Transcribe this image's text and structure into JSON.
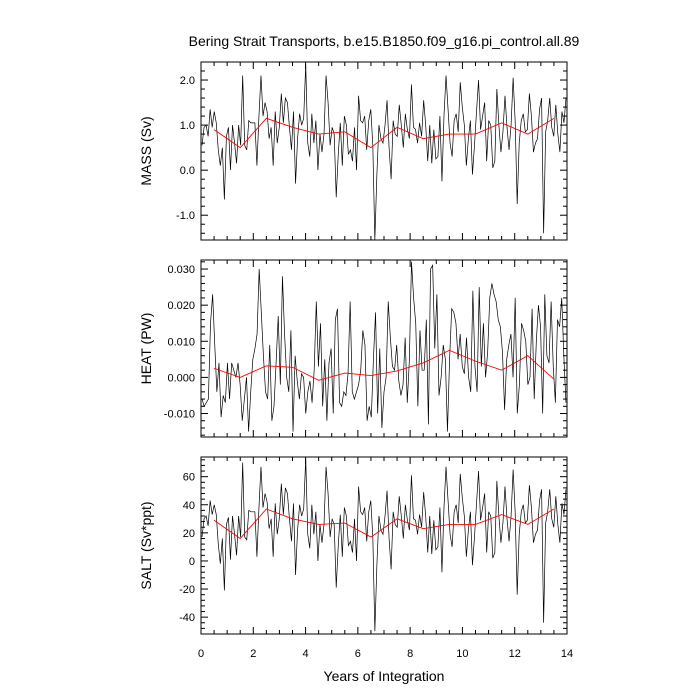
{
  "title": "Bering Strait Transports, b.e15.B1850.f09_g16.pi_control.all.89",
  "chart_data": {
    "type": "line",
    "title": "Bering Strait Transports, b.e15.B1850.f09_g16.pi_control.all.89",
    "xlabel": "Years of Integration",
    "xlim": [
      0,
      14
    ],
    "xticks": [
      "0",
      "2",
      "4",
      "6",
      "8",
      "10",
      "12",
      "14"
    ],
    "xtick_values": [
      0,
      2,
      4,
      6,
      8,
      10,
      12,
      14
    ],
    "colors": {
      "monthly": "#000000",
      "annual": "#ff0000"
    },
    "panels": [
      {
        "ylabel": "MASS (Sv)",
        "ylim": [
          -1.55,
          2.4
        ],
        "ytick_values": [
          -1.0,
          0.0,
          1.0,
          2.0
        ],
        "yticks": [
          "-1.0",
          "0.0",
          "1.0",
          "2.0"
        ],
        "series": [
          {
            "values": [
              0.55,
              0.95,
              1.0,
              0.75,
              1.35,
              0.95,
              1.3,
              1.05,
              0.45,
              0.1,
              0.5,
              -0.65,
              0.75,
              0.95,
              0.0,
              1.0,
              0.6,
              0.15,
              1.0,
              0.55,
              2.1,
              0.55,
              0.45,
              1.1,
              1.05,
              1.05,
              1.05,
              0.1,
              1.2,
              2.1,
              1.2,
              1.5,
              1.3,
              0.7,
              0.95,
              0.1,
              1.3,
              0.6,
              0.95,
              1.7,
              1.05,
              1.6,
              1.5,
              0.95,
              0.45,
              1.3,
              -0.3,
              0.7,
              1.25,
              1.0,
              1.15,
              2.35,
              0.6,
              0.3,
              1.25,
              0.6,
              1.1,
              0.0,
              0.8,
              0.4,
              0.8,
              2.1,
              1.5,
              0.55,
              0.95,
              0.8,
              -0.6,
              0.35,
              1.05,
              0.1,
              1.2,
              1.0,
              0.35,
              0.45,
              0.2,
              0.95,
              0.0,
              1.65,
              1.1,
              1.05,
              1.2,
              0.45,
              1.1,
              1.35,
              0.55,
              -1.55,
              -0.1,
              1.0,
              0.7,
              0.6,
              1.0,
              1.55,
              0.5,
              -0.2,
              1.1,
              0.8,
              0.75,
              1.45,
              1.0,
              0.5,
              1.25,
              0.9,
              0.7,
              1.9,
              0.95,
              0.9,
              0.6,
              1.05,
              0.75,
              1.55,
              1.0,
              0.2,
              1.0,
              0.15,
              0.9,
              0.25,
              0.3,
              1.2,
              -0.25,
              1.2,
              2.1,
              1.35,
              0.6,
              0.3,
              1.1,
              1.25,
              0.85,
              1.95,
              1.4,
              1.0,
              0.1,
              0.7,
              1.1,
              -0.1,
              0.55,
              1.3,
              2.0,
              0.9,
              1.2,
              1.5,
              0.2,
              1.1,
              1.0,
              0.05,
              0.2,
              1.8,
              1.0,
              0.4,
              0.85,
              1.65,
              0.95,
              0.45,
              1.0,
              2.05,
              1.1,
              -0.75,
              0.6,
              1.1,
              1.25,
              0.85,
              0.9,
              1.7,
              1.2,
              0.4,
              0.6,
              0.7,
              1.35,
              1.6,
              -1.4,
              0.85,
              1.1,
              1.6,
              0.95,
              0.75,
              1.45,
              0.8,
              0.4,
              1.3,
              1.05,
              1.6
            ]
          },
          {
            "x": [
              0.5,
              1.5,
              2.5,
              3.5,
              4.5,
              5.5,
              6.5,
              7.5,
              8.5,
              9.5,
              10.5,
              11.5,
              12.5,
              13.5
            ],
            "values": [
              0.9,
              0.5,
              1.15,
              0.95,
              0.8,
              0.85,
              0.5,
              0.95,
              0.7,
              0.8,
              0.8,
              1.05,
              0.8,
              1.15
            ]
          }
        ]
      },
      {
        "ylabel": "HEAT (PW)",
        "ylim": [
          -0.0165,
          0.0325
        ],
        "ytick_values": [
          -0.01,
          0.0,
          0.01,
          0.02,
          0.03
        ],
        "yticks": [
          "-0.010",
          "0.000",
          "0.010",
          "0.020",
          "0.030"
        ],
        "series": [
          {
            "values": [
              -0.006,
              -0.008,
              -0.007,
              -0.006,
              0.015,
              0.023,
              0.009,
              -0.004,
              0.004,
              -0.011,
              -0.005,
              -0.007,
              0.004,
              -0.006,
              0.004,
              0.002,
              0.0,
              0.004,
              -0.002,
              -0.012,
              -0.006,
              0.0,
              -0.015,
              -0.004,
              0.005,
              0.008,
              0.012,
              0.03,
              0.018,
              0.006,
              -0.004,
              -0.006,
              0.009,
              -0.012,
              -0.008,
              0.004,
              0.017,
              -0.002,
              0.028,
              0.012,
              0.0,
              -0.004,
              0.013,
              -0.015,
              0.006,
              -0.001,
              -0.006,
              0.001,
              0.0,
              -0.01,
              -0.004,
              -0.001,
              -0.007,
              0.002,
              0.021,
              0.003,
              0.015,
              -0.008,
              0.005,
              -0.012,
              0.004,
              0.008,
              -0.01,
              0.016,
              0.019,
              -0.007,
              -0.008,
              -0.004,
              -0.005,
              0.001,
              0.021,
              -0.004,
              -0.006,
              -0.004,
              -0.002,
              0.002,
              0.013,
              0.009,
              -0.012,
              -0.008,
              -0.011,
              0.005,
              0.018,
              -0.01,
              0.008,
              -0.014,
              -0.004,
              0.0,
              0.021,
              0.011,
              0.003,
              0.002,
              0.009,
              -0.001,
              -0.005,
              -0.002,
              0.011,
              -0.007,
              0.005,
              0.032,
              0.022,
              0.015,
              -0.008,
              0.013,
              0.002,
              0.002,
              0.016,
              -0.013,
              0.03,
              0.031,
              0.008,
              0.023,
              -0.005,
              0.0,
              0.009,
              0.005,
              -0.015,
              0.005,
              0.019,
              0.018,
              0.015,
              0.005,
              0.012,
              0.003,
              0.001,
              0.011,
              0.0,
              -0.004,
              0.024,
              0.003,
              -0.004,
              0.025,
              0.003,
              0.015,
              0.0,
              0.007,
              0.022,
              0.026,
              0.023,
              0.021,
              0.016,
              0.014,
              0.007,
              -0.009,
              0.005,
              0.009,
              0.012,
              0.0,
              0.022,
              -0.01,
              -0.002,
              0.015,
              0.013,
              0.01,
              -0.002,
              0.0,
              0.019,
              -0.006,
              0.01,
              0.02,
              0.014,
              -0.01,
              0.023,
              0.006,
              0.004,
              0.021,
              0.003,
              -0.007,
              0.016,
              0.014,
              0.022,
              0.006,
              -0.007
            ]
          },
          {
            "x": [
              0.5,
              1.5,
              2.5,
              3.5,
              4.5,
              5.5,
              6.5,
              7.5,
              8.5,
              9.5,
              10.5,
              11.5,
              12.5,
              13.5
            ],
            "values": [
              0.0025,
              0.0,
              0.0032,
              0.0028,
              -0.0008,
              0.0012,
              0.0005,
              0.0018,
              0.004,
              0.0075,
              0.0045,
              0.002,
              0.006,
              -0.0005
            ]
          }
        ]
      },
      {
        "ylabel": "SALT (Sv*ppt)",
        "ylim": [
          -52,
          74
        ],
        "ytick_values": [
          -40,
          -20,
          0,
          20,
          40,
          60
        ],
        "yticks": [
          "-40",
          "-20",
          "0",
          "20",
          "40",
          "60"
        ],
        "series": [
          {
            "values": [
              17,
              30,
              32,
              25,
              43,
              33,
              40,
              33,
              12,
              -2,
              16,
              -21,
              26,
              31,
              1,
              32,
              19,
              4,
              32,
              17,
              70,
              17,
              15,
              36,
              35,
              35,
              35,
              3,
              38,
              67,
              38,
              48,
              42,
              23,
              30,
              3,
              41,
              19,
              30,
              55,
              33,
              52,
              48,
              30,
              14,
              41,
              -10,
              22,
              40,
              32,
              37,
              73,
              19,
              9,
              40,
              19,
              35,
              0,
              26,
              13,
              26,
              67,
              48,
              17,
              30,
              26,
              -19,
              11,
              33,
              3,
              38,
              32,
              11,
              14,
              6,
              30,
              0,
              53,
              35,
              33,
              38,
              14,
              35,
              43,
              17,
              -50,
              -3,
              32,
              22,
              19,
              32,
              50,
              16,
              -6,
              35,
              26,
              24,
              46,
              32,
              16,
              40,
              29,
              22,
              61,
              30,
              29,
              19,
              33,
              24,
              49,
              32,
              6,
              32,
              5,
              29,
              8,
              10,
              38,
              -8,
              38,
              67,
              43,
              19,
              10,
              35,
              40,
              27,
              62,
              45,
              32,
              3,
              22,
              35,
              -3,
              17,
              41,
              64,
              29,
              38,
              48,
              6,
              35,
              32,
              2,
              6,
              57,
              32,
              13,
              27,
              53,
              30,
              14,
              32,
              65,
              35,
              -24,
              19,
              35,
              40,
              27,
              29,
              54,
              38,
              13,
              19,
              22,
              43,
              51,
              -44,
              27,
              35,
              51,
              30,
              24,
              46,
              26,
              13,
              41,
              33,
              51
            ]
          },
          {
            "x": [
              0.5,
              1.5,
              2.5,
              3.5,
              4.5,
              5.5,
              6.5,
              7.5,
              8.5,
              9.5,
              10.5,
              11.5,
              12.5,
              13.5
            ],
            "values": [
              29,
              16,
              37,
              30,
              26,
              27,
              17,
              30,
              23,
              26,
              26,
              33,
              26,
              37
            ]
          }
        ]
      }
    ]
  }
}
